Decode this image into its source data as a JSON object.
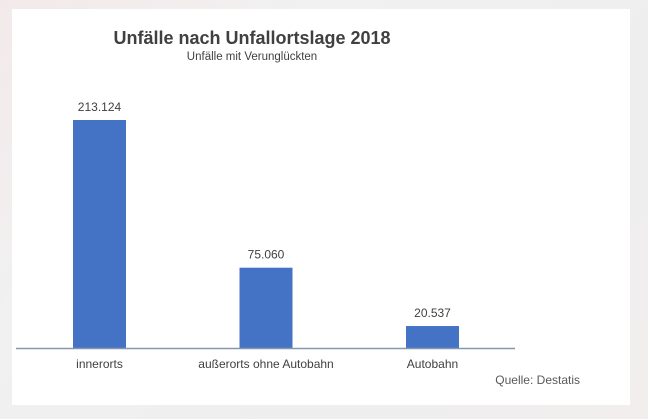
{
  "chart_data": {
    "type": "bar",
    "title": "Unfälle nach Unfallortslage 2018",
    "subtitle": "Unfälle mit Verunglückten",
    "categories": [
      "innerorts",
      "außerorts ohne Autobahn",
      "Autobahn"
    ],
    "values": [
      213124,
      75060,
      20537
    ],
    "data_labels": [
      "213.124",
      "75.060",
      "20.537"
    ],
    "xlabel": "",
    "ylabel": "",
    "ylim": [
      0,
      213124
    ],
    "grid": false,
    "legend": "none",
    "source": "Quelle: Destatis",
    "bar_color": "#4472c4",
    "axis_color": "#8497b0"
  }
}
